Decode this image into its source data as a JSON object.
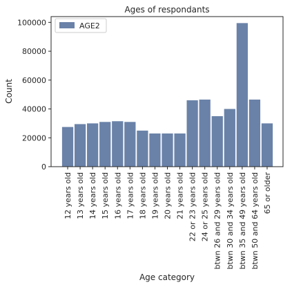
{
  "chart_data": {
    "type": "bar",
    "title": "Ages of respondants",
    "xlabel": "Age category",
    "ylabel": "Count",
    "ylim": [
      0,
      104000
    ],
    "yticks": [
      "0",
      "20000",
      "40000",
      "60000",
      "80000",
      "100000"
    ],
    "grid": false,
    "legend_position": "top-left",
    "categories": [
      "12 years old",
      "13 years old",
      "14 years old",
      "15 years old",
      "16 years old",
      "17 years old",
      "18 years old",
      "19 years old",
      "20 years old",
      "21 years old",
      "22 or 23 years old",
      "24 or 25 years old",
      "btwn 26 and 29 years old",
      "btwn 30 and 34 years old",
      "btwn 35 and 49 years old",
      "btwn 50 and 64 years old",
      "65 or older"
    ],
    "series": [
      {
        "name": "AGE2",
        "color": "#6a82a8",
        "values": [
          27500,
          29500,
          30000,
          31000,
          31500,
          31000,
          25000,
          23000,
          23000,
          23000,
          46000,
          46500,
          35000,
          40000,
          99500,
          46500,
          30000
        ]
      }
    ]
  }
}
